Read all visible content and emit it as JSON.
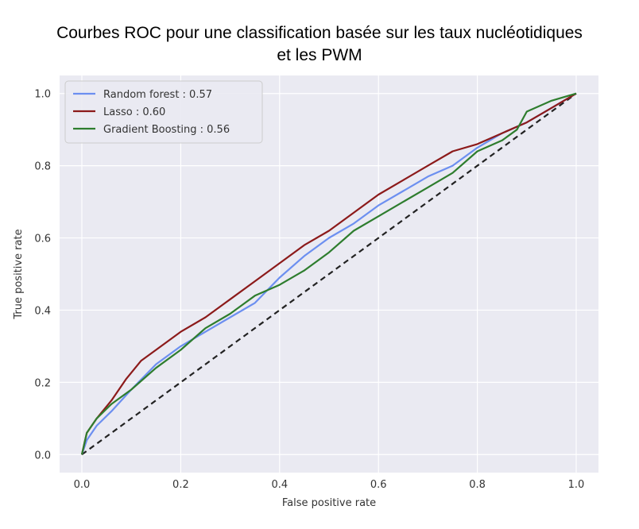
{
  "chart_data": {
    "type": "line",
    "title_line1": "Courbes ROC pour une classification basée sur les taux nucléotidiques",
    "title_line2": "et les PWM",
    "xlabel": "False positive rate",
    "ylabel": "True positive rate",
    "xlim": [
      -0.045,
      1.045
    ],
    "ylim": [
      -0.05,
      1.05
    ],
    "xticks": [
      "0.0",
      "0.2",
      "0.4",
      "0.6",
      "0.8",
      "1.0"
    ],
    "yticks": [
      "0.0",
      "0.2",
      "0.4",
      "0.6",
      "0.8",
      "1.0"
    ],
    "grid": true,
    "legend_position": "top-left",
    "series": [
      {
        "name": "Random forest : 0.57",
        "color": "#6c8ff0",
        "x": [
          0,
          0.01,
          0.03,
          0.06,
          0.1,
          0.15,
          0.2,
          0.25,
          0.3,
          0.35,
          0.4,
          0.45,
          0.5,
          0.55,
          0.6,
          0.65,
          0.7,
          0.75,
          0.8,
          0.85,
          0.9,
          0.95,
          1.0
        ],
        "y": [
          0,
          0.04,
          0.08,
          0.12,
          0.18,
          0.25,
          0.3,
          0.34,
          0.38,
          0.42,
          0.49,
          0.55,
          0.6,
          0.64,
          0.69,
          0.73,
          0.77,
          0.8,
          0.85,
          0.89,
          0.92,
          0.96,
          1.0
        ]
      },
      {
        "name": "Lasso : 0.60",
        "color": "#8c1a1a",
        "x": [
          0,
          0.01,
          0.03,
          0.06,
          0.09,
          0.12,
          0.15,
          0.2,
          0.25,
          0.3,
          0.35,
          0.4,
          0.45,
          0.5,
          0.55,
          0.6,
          0.65,
          0.7,
          0.75,
          0.8,
          0.85,
          0.9,
          0.95,
          1.0
        ],
        "y": [
          0,
          0.06,
          0.1,
          0.15,
          0.21,
          0.26,
          0.29,
          0.34,
          0.38,
          0.43,
          0.48,
          0.53,
          0.58,
          0.62,
          0.67,
          0.72,
          0.76,
          0.8,
          0.84,
          0.86,
          0.89,
          0.92,
          0.96,
          1.0
        ]
      },
      {
        "name": "Gradient Boosting : 0.56",
        "color": "#2e7d2e",
        "x": [
          0,
          0.01,
          0.03,
          0.06,
          0.1,
          0.15,
          0.2,
          0.25,
          0.3,
          0.35,
          0.4,
          0.45,
          0.5,
          0.55,
          0.6,
          0.65,
          0.7,
          0.75,
          0.8,
          0.85,
          0.88,
          0.9,
          0.95,
          1.0
        ],
        "y": [
          0,
          0.06,
          0.1,
          0.14,
          0.18,
          0.24,
          0.29,
          0.35,
          0.39,
          0.44,
          0.47,
          0.51,
          0.56,
          0.62,
          0.66,
          0.7,
          0.74,
          0.78,
          0.84,
          0.87,
          0.9,
          0.95,
          0.98,
          1.0
        ]
      }
    ],
    "diagonal": {
      "color": "#222222",
      "x": [
        0,
        1
      ],
      "y": [
        0,
        1
      ]
    }
  }
}
